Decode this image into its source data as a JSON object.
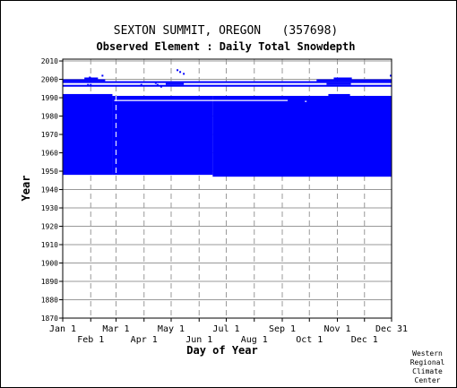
{
  "chart_data": {
    "type": "heatmap",
    "title": "SEXTON SUMMIT, OREGON   (357698)",
    "subtitle": "Observed Element : Daily Total Snowdepth",
    "xlabel": "Day of Year",
    "ylabel": "Year",
    "xlim": [
      1,
      365
    ],
    "ylim": [
      1870,
      2011
    ],
    "grid": true,
    "yticks": [
      1870,
      1880,
      1890,
      1900,
      1910,
      1920,
      1930,
      1940,
      1950,
      1960,
      1970,
      1980,
      1990,
      2000,
      2010
    ],
    "xticks_top": [
      {
        "label": "Jan 1",
        "day": 1
      },
      {
        "label": "Mar 1",
        "day": 60
      },
      {
        "label": "May 1",
        "day": 121
      },
      {
        "label": "Jul 1",
        "day": 182
      },
      {
        "label": "Sep 1",
        "day": 244
      },
      {
        "label": "Nov 1",
        "day": 305
      },
      {
        "label": "Dec 31",
        "day": 365
      }
    ],
    "xticks_bottom": [
      {
        "label": "Feb 1",
        "day": 32
      },
      {
        "label": "Apr 1",
        "day": 91
      },
      {
        "label": "Jun 1",
        "day": 152
      },
      {
        "label": "Aug 1",
        "day": 213
      },
      {
        "label": "Oct 1",
        "day": 274
      },
      {
        "label": "Dec 1",
        "day": 335
      }
    ],
    "bands": [
      {
        "label": "observed-block-winter-early",
        "day_start": 1,
        "day_end": 56,
        "year_start": 1948,
        "year_end": 1992
      },
      {
        "label": "observed-block-spring",
        "day_start": 56,
        "day_end": 167,
        "year_start": 1948,
        "year_end": 1991
      },
      {
        "label": "observed-block-summer",
        "day_start": 167,
        "day_end": 304,
        "year_start": 1947,
        "year_end": 1991
      },
      {
        "label": "observed-block-late",
        "day_start": 304,
        "day_end": 365,
        "year_start": 1947,
        "year_end": 1991
      },
      {
        "label": "partial-year-1991-a",
        "day_start": 295,
        "day_end": 319,
        "year_start": 1991,
        "year_end": 1992
      },
      {
        "label": "row-1998",
        "day_start": 1,
        "day_end": 365,
        "year_start": 1998,
        "year_end": 1999
      },
      {
        "label": "row-1996",
        "day_start": 1,
        "day_end": 365,
        "year_start": 1996,
        "year_end": 1997
      },
      {
        "label": "row-1999",
        "day_start": 1,
        "day_end": 48,
        "year_start": 1999,
        "year_end": 2000
      },
      {
        "label": "row-1999-b",
        "day_start": 282,
        "day_end": 365,
        "year_start": 1999,
        "year_end": 2000
      },
      {
        "label": "row-2000-a",
        "day_start": 25,
        "day_end": 40,
        "year_start": 2000,
        "year_end": 2001
      },
      {
        "label": "row-2000-b",
        "day_start": 301,
        "day_end": 321,
        "year_start": 2000,
        "year_end": 2001
      },
      {
        "label": "row-1997-a",
        "day_start": 115,
        "day_end": 135,
        "year_start": 1997,
        "year_end": 1998
      },
      {
        "label": "row-1997-b",
        "day_start": 293,
        "day_end": 320,
        "year_start": 1997,
        "year_end": 1998
      }
    ],
    "missing_lines": [
      {
        "year": 1988.5,
        "day_start": 58,
        "day_end": 250
      },
      {
        "year": 1988,
        "day_start": 269,
        "day_end": 271
      }
    ],
    "dots": [
      {
        "day": 31,
        "year": 2001
      },
      {
        "day": 45,
        "year": 2002
      },
      {
        "day": 128,
        "year": 2005
      },
      {
        "day": 131,
        "year": 2004
      },
      {
        "day": 135,
        "year": 2003
      },
      {
        "day": 364,
        "year": 2002
      },
      {
        "day": 29,
        "year": 1997
      },
      {
        "day": 32,
        "year": 1997
      },
      {
        "day": 88,
        "year": 1997
      },
      {
        "day": 104,
        "year": 1998
      },
      {
        "day": 106,
        "year": 1997
      },
      {
        "day": 110,
        "year": 1996
      }
    ],
    "dashed_gridlines": true
  },
  "footer": {
    "line1": "Western",
    "line2": "Regional",
    "line3": "Climate",
    "line4": "Center"
  },
  "colors": {
    "data": "#0000ff",
    "background": "#ffffff",
    "axis": "#000000",
    "grid": "#999999"
  }
}
